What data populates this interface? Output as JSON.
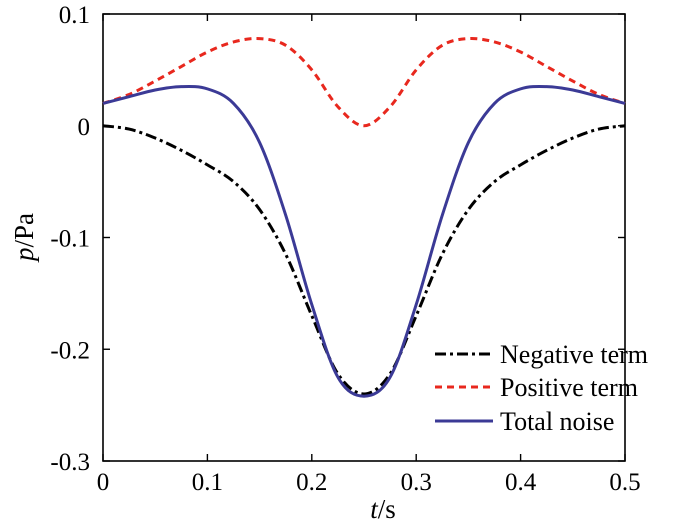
{
  "chart_data": {
    "type": "line",
    "title": "",
    "xlabel": {
      "var": "t",
      "unit": "/s"
    },
    "ylabel": {
      "var": "p",
      "unit": "/Pa"
    },
    "xlim": [
      0,
      0.5
    ],
    "ylim": [
      -0.3,
      0.1
    ],
    "xticks": [
      0,
      0.1,
      0.2,
      0.3,
      0.4,
      0.5
    ],
    "xtick_labels": [
      "0",
      "0.1",
      "0.2",
      "0.3",
      "0.4",
      "0.5"
    ],
    "yticks": [
      0.1,
      0,
      -0.1,
      -0.2,
      -0.3
    ],
    "ytick_labels": [
      "0.1",
      "0",
      "-0.1",
      "-0.2",
      "-0.3"
    ],
    "grid": false,
    "legend_position": "bottom-right",
    "series": [
      {
        "name": "Negative term",
        "color": "#000000",
        "style": "dash-dot",
        "x": [
          0,
          0.025,
          0.05,
          0.075,
          0.1,
          0.125,
          0.15,
          0.175,
          0.2,
          0.225,
          0.25,
          0.275,
          0.3,
          0.325,
          0.35,
          0.375,
          0.4,
          0.425,
          0.45,
          0.475,
          0.5
        ],
        "y": [
          0,
          -0.003,
          -0.011,
          -0.022,
          -0.035,
          -0.05,
          -0.075,
          -0.115,
          -0.17,
          -0.222,
          -0.24,
          -0.222,
          -0.17,
          -0.115,
          -0.075,
          -0.05,
          -0.035,
          -0.022,
          -0.011,
          -0.003,
          0
        ]
      },
      {
        "name": "Positive term",
        "color": "#e8281e",
        "style": "dashed",
        "x": [
          0,
          0.025,
          0.05,
          0.075,
          0.1,
          0.125,
          0.15,
          0.175,
          0.2,
          0.225,
          0.25,
          0.275,
          0.3,
          0.325,
          0.35,
          0.375,
          0.4,
          0.425,
          0.45,
          0.475,
          0.5
        ],
        "y": [
          0.02,
          0.028,
          0.04,
          0.053,
          0.066,
          0.075,
          0.078,
          0.072,
          0.05,
          0.017,
          0,
          0.017,
          0.05,
          0.072,
          0.078,
          0.075,
          0.066,
          0.053,
          0.04,
          0.028,
          0.02
        ]
      },
      {
        "name": "Total noise",
        "color": "#3b3a96",
        "style": "solid",
        "x": [
          0,
          0.025,
          0.05,
          0.075,
          0.1,
          0.125,
          0.15,
          0.175,
          0.2,
          0.225,
          0.25,
          0.275,
          0.3,
          0.325,
          0.35,
          0.375,
          0.4,
          0.425,
          0.45,
          0.475,
          0.5
        ],
        "y": [
          0.02,
          0.026,
          0.032,
          0.035,
          0.033,
          0.02,
          -0.015,
          -0.08,
          -0.16,
          -0.225,
          -0.242,
          -0.225,
          -0.16,
          -0.08,
          -0.015,
          0.02,
          0.033,
          0.035,
          0.032,
          0.026,
          0.02
        ]
      }
    ]
  }
}
